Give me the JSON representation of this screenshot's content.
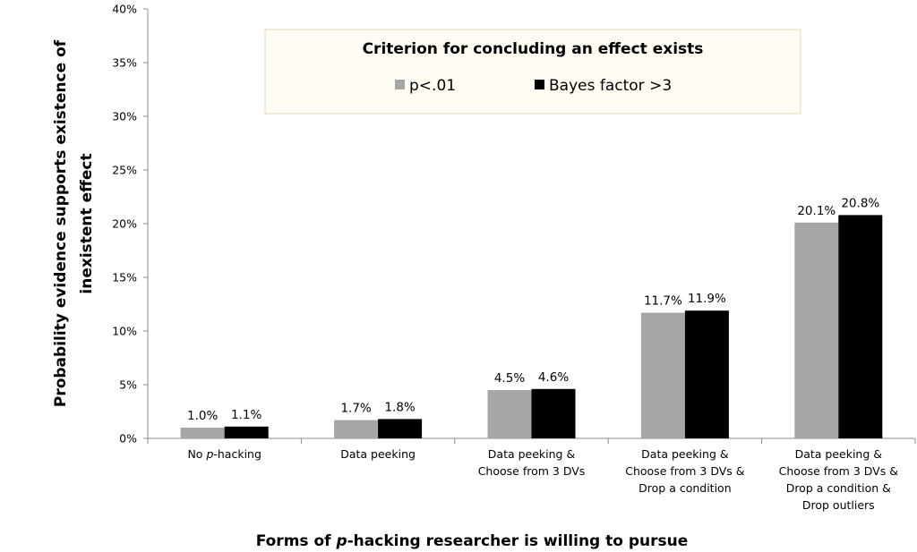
{
  "chart_data": {
    "type": "bar",
    "xlabel": {
      "pre": "Forms of ",
      "italic": "p",
      "post": "-hacking researcher is willing to pursue"
    },
    "ylabel": [
      "Probability evidence supports existence of",
      "inexistent effect"
    ],
    "ylim": [
      0,
      40
    ],
    "yticks": [
      "0%",
      "5%",
      "10%",
      "15%",
      "20%",
      "25%",
      "30%",
      "35%",
      "40%"
    ],
    "grid": false,
    "legend": {
      "title": "Criterion for concluding an effect exists",
      "position": "top-center"
    },
    "categories": [
      [
        {
          "t": "No "
        },
        {
          "t": "p",
          "i": true
        },
        {
          "t": "-hacking"
        }
      ],
      [
        {
          "t": "Data peeking"
        }
      ],
      [
        {
          "t": "Data peeking &"
        },
        {
          "t": "Choose from 3 DVs",
          "br": true
        }
      ],
      [
        {
          "t": "Data peeking &"
        },
        {
          "t": "Choose from 3 DVs &",
          "br": true
        },
        {
          "t": "Drop a condition",
          "br": true
        }
      ],
      [
        {
          "t": "Data peeking &"
        },
        {
          "t": "Choose from 3 DVs &",
          "br": true
        },
        {
          "t": "Drop a condition &",
          "br": true
        },
        {
          "t": "Drop outliers",
          "br": true
        }
      ]
    ],
    "series": [
      {
        "name": "p<.01",
        "color": "#a6a6a6",
        "values": [
          1.0,
          1.7,
          4.5,
          11.7,
          20.1
        ],
        "labels": [
          "1.0%",
          "1.7%",
          "4.5%",
          "11.7%",
          "20.1%"
        ]
      },
      {
        "name": "Bayes factor >3",
        "color": "#000000",
        "values": [
          1.1,
          1.8,
          4.6,
          11.9,
          20.8
        ],
        "labels": [
          "1.1%",
          "1.8%",
          "4.6%",
          "11.9%",
          "20.8%"
        ]
      }
    ]
  }
}
